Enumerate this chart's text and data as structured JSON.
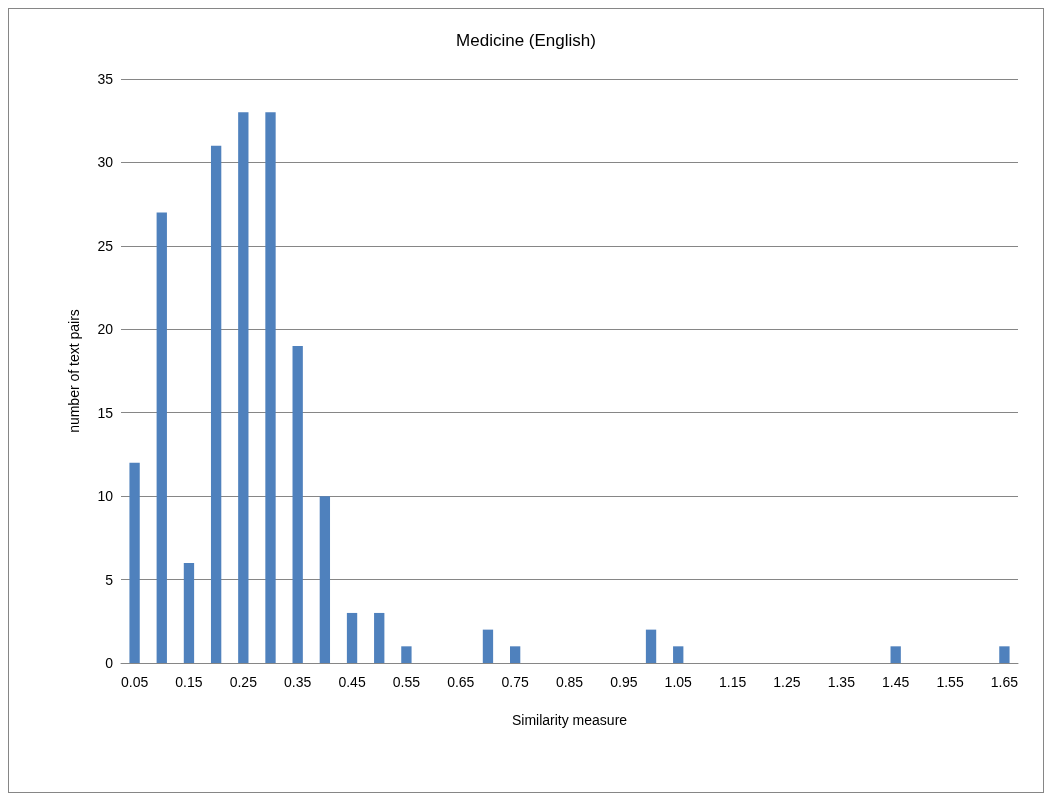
{
  "chart_data": {
    "type": "bar",
    "title": "Medicine (English)",
    "xlabel": "Similarity measure",
    "ylabel": "number of text pairs",
    "categories": [
      "0.05",
      null,
      "0.15",
      null,
      "0.25",
      null,
      "0.35",
      null,
      "0.45",
      null,
      "0.55",
      null,
      "0.65",
      null,
      "0.75",
      null,
      "0.85",
      null,
      "0.95",
      null,
      "1.05",
      null,
      "1.15",
      null,
      "1.25",
      null,
      "1.35",
      null,
      "1.45",
      null,
      "1.55",
      null,
      "1.65"
    ],
    "values": [
      12,
      27,
      6,
      31,
      33,
      33,
      19,
      10,
      3,
      3,
      1,
      0,
      0,
      2,
      1,
      0,
      0,
      0,
      0,
      2,
      1,
      0,
      0,
      0,
      0,
      0,
      0,
      0,
      1,
      0,
      0,
      0,
      1
    ],
    "color": "#4f81bd",
    "ylim": [
      0,
      35
    ],
    "yticks": [
      0,
      5,
      10,
      15,
      20,
      25,
      30,
      35
    ],
    "grid": "y"
  }
}
